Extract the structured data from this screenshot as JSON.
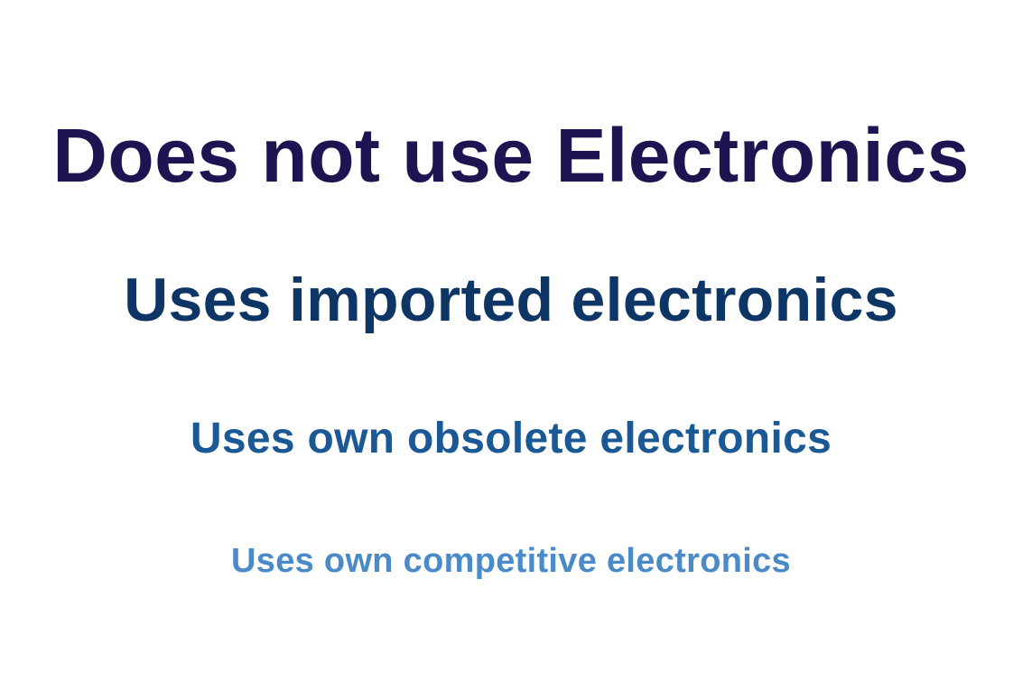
{
  "lines": [
    {
      "text": "Does not use Electronics",
      "color": "#1f1452"
    },
    {
      "text": "Uses imported electronics",
      "color": "#0d3566"
    },
    {
      "text": "Uses own obsolete electronics",
      "color": "#1a5896"
    },
    {
      "text": "Uses own competitive electronics",
      "color": "#4a8ac8"
    }
  ]
}
